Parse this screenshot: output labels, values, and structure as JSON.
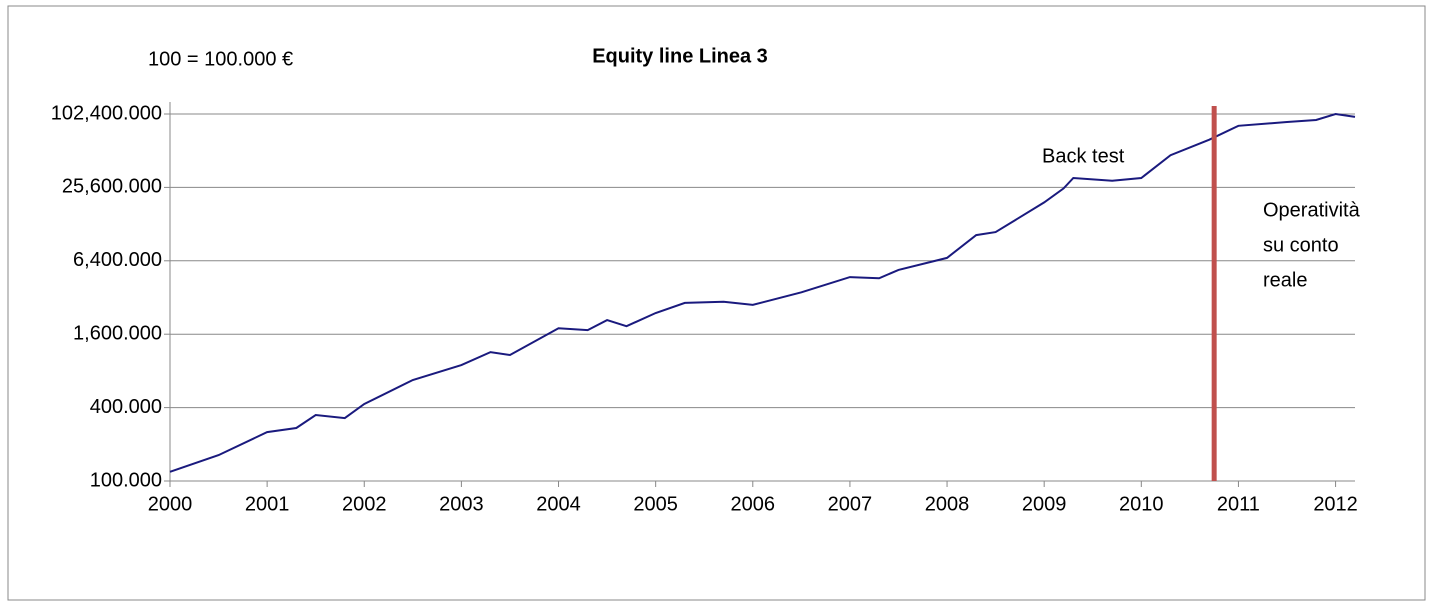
{
  "chart_data": {
    "type": "line",
    "title": "Equity line Linea 3",
    "subtitle": "100 = 100.000 €",
    "log_scale_y": true,
    "log_base": 4,
    "grid": true,
    "x": [
      2000.0,
      2000.5,
      2001.0,
      2001.3,
      2001.5,
      2001.8,
      2002.0,
      2002.5,
      2003.0,
      2003.3,
      2003.5,
      2004.0,
      2004.3,
      2004.5,
      2004.7,
      2005.0,
      2005.3,
      2005.7,
      2006.0,
      2006.5,
      2007.0,
      2007.3,
      2007.5,
      2008.0,
      2008.3,
      2008.5,
      2009.0,
      2009.2,
      2009.3,
      2009.7,
      2010.0,
      2010.3,
      2010.7,
      2011.0,
      2011.5,
      2011.8,
      2012.0,
      2012.2
    ],
    "series": [
      {
        "color": "#1a1a7e",
        "values": [
          119,
          163,
          252,
          272,
          348,
          328,
          428,
          674,
          892,
          1140,
          1080,
          1790,
          1730,
          2090,
          1860,
          2390,
          2890,
          2950,
          2780,
          3530,
          4700,
          4600,
          5390,
          6760,
          10400,
          11000,
          19300,
          25100,
          30600,
          29000,
          30600,
          47000,
          63000,
          82000,
          88000,
          91500,
          102400,
          97000
        ]
      }
    ],
    "xlim": [
      2000,
      2012.2
    ],
    "xticks": [
      2000,
      2001,
      2002,
      2003,
      2004,
      2005,
      2006,
      2007,
      2008,
      2009,
      2010,
      2011,
      2012
    ],
    "ylim": [
      100,
      102400
    ],
    "yticks": [
      {
        "value": 100,
        "label": "100.000"
      },
      {
        "value": 400,
        "label": "400.000"
      },
      {
        "value": 1600,
        "label": "1,600.000"
      },
      {
        "value": 6400,
        "label": "6,400.000"
      },
      {
        "value": 25600,
        "label": "25,600.000"
      },
      {
        "value": 102400,
        "label": "102,400.000"
      }
    ],
    "marker_line": {
      "x": 2010.75,
      "color": "#c0504d"
    },
    "annotations": [
      {
        "lines": [
          "Back test"
        ]
      },
      {
        "lines": [
          "Operatività",
          "su conto",
          "reale"
        ]
      }
    ]
  }
}
